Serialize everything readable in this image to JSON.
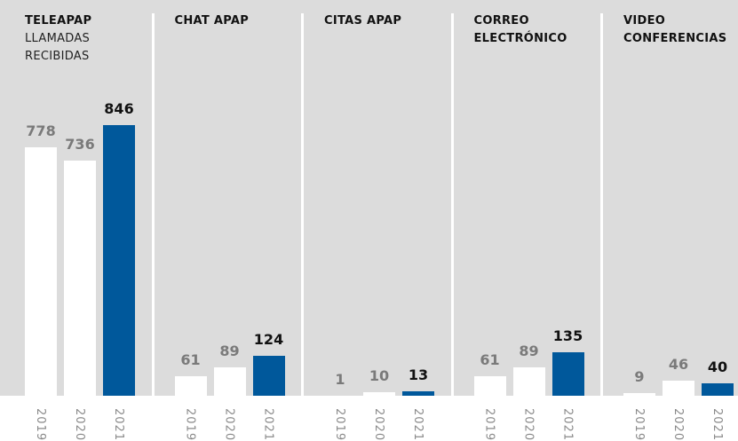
{
  "chart_data": [
    {
      "type": "bar",
      "title": "TELEAPAP",
      "subtitle": "LLAMADAS RECIBIDAS",
      "categories": [
        "2019",
        "2020",
        "2021"
      ],
      "values": [
        778,
        736,
        846
      ],
      "colors": [
        "#ffffff",
        "#ffffff",
        "#00589b"
      ],
      "ylim": [
        0,
        850
      ]
    },
    {
      "type": "bar",
      "title": "CHAT APAP",
      "categories": [
        "2019",
        "2020",
        "2021"
      ],
      "values": [
        61,
        89,
        124
      ],
      "colors": [
        "#ffffff",
        "#ffffff",
        "#00589b"
      ],
      "ylim": [
        0,
        850
      ]
    },
    {
      "type": "bar",
      "title": "CITAS APAP",
      "categories": [
        "2019",
        "2020",
        "2021"
      ],
      "values": [
        1,
        10,
        13
      ],
      "colors": [
        "#ffffff",
        "#ffffff",
        "#00589b"
      ],
      "ylim": [
        0,
        850
      ]
    },
    {
      "type": "bar",
      "title": "CORREO ELECTRÓNICO",
      "categories": [
        "2019",
        "2020",
        "2021"
      ],
      "values": [
        61,
        89,
        135
      ],
      "colors": [
        "#ffffff",
        "#ffffff",
        "#00589b"
      ],
      "ylim": [
        0,
        850
      ]
    },
    {
      "type": "bar",
      "title": "VIDEO CONFERENCIAS",
      "categories": [
        "2019",
        "2020",
        "2021"
      ],
      "values": [
        9,
        46,
        40
      ],
      "colors": [
        "#ffffff",
        "#ffffff",
        "#00589b"
      ],
      "ylim": [
        0,
        850
      ]
    }
  ]
}
